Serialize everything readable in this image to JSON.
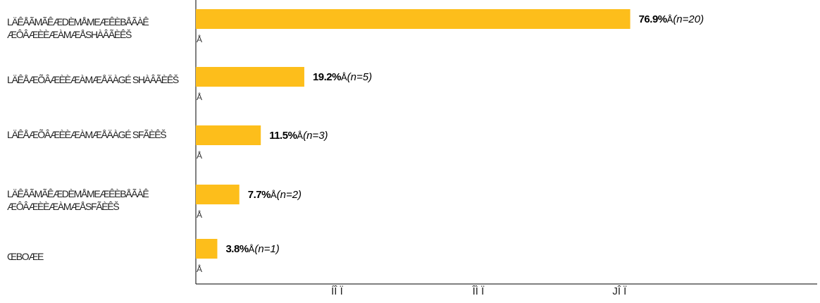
{
  "chart_data": {
    "type": "bar",
    "orientation": "horizontal",
    "categories": [
      "LÄÊÅÃMÃÊÆDÈMÅMEÆÊÈBÅÃÀÊ ÆÔÂÆÈÈÆÀMÆÅSHÀÂÃÈÊŠ",
      "LÄÊÅÆÕÂÆÈÈÆÀMÆÅÄÀGÉ SHÀÂÃÈÊŠ",
      "LÄÊÅÆÕÂÆÈÈÆÀMÆÅÄÀGÉ SFÃÈÊŠ",
      "LÄÊÅÃMÃÊÆDÈMÅMEÆÊÈBÅÃÀÊ ÆÔÂÆÈÈÆÀMÆÅSFÃÈÊŠ",
      "ŒBOÆE"
    ],
    "values": [
      76.9,
      19.2,
      11.5,
      7.7,
      3.8
    ],
    "counts": [
      "(n=20)",
      "(n=5)",
      "(n=3)",
      "(n=2)",
      "(n=1)"
    ],
    "value_labels": [
      "76.9%",
      "19.2%",
      "11.5%",
      "7.7%",
      "3.8%"
    ],
    "count_separator": "Å",
    "stray_glyph": "Å",
    "x_tick_labels": [
      "ÍÎ Ï",
      "ÎÌ Ï",
      "JÎ Ï"
    ],
    "x_tick_values": [
      25,
      50,
      75
    ],
    "xlim": [
      0,
      110
    ],
    "colors": {
      "bar": "#FDBE1B",
      "axis": "#000000"
    }
  }
}
